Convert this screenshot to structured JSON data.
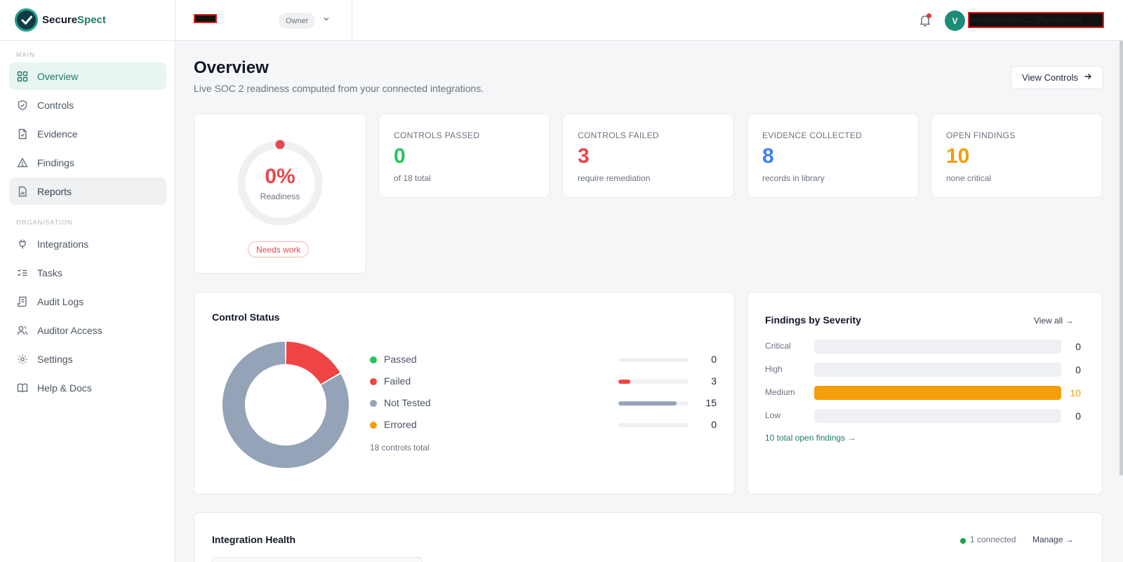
{
  "brand": {
    "name_part1": "Secure",
    "name_part2": "Spect"
  },
  "sidebar": {
    "section_main": "MAIN",
    "section_org": "ORGANISATION",
    "items": [
      {
        "label": "Overview",
        "icon": "grid-icon"
      },
      {
        "label": "Controls",
        "icon": "shield-icon"
      },
      {
        "label": "Evidence",
        "icon": "file-icon"
      },
      {
        "label": "Findings",
        "icon": "warning-icon"
      },
      {
        "label": "Reports",
        "icon": "report-icon"
      },
      {
        "label": "Integrations",
        "icon": "plug-icon"
      },
      {
        "label": "Tasks",
        "icon": "checklist-icon"
      },
      {
        "label": "Audit Logs",
        "icon": "scroll-icon"
      },
      {
        "label": "Auditor Access",
        "icon": "users-icon"
      },
      {
        "label": "Settings",
        "icon": "gear-icon"
      },
      {
        "label": "Help & Docs",
        "icon": "book-icon"
      }
    ]
  },
  "topbar": {
    "org_name": "████",
    "role": "Owner",
    "avatar_initial": "V",
    "user_email": "venkateshakm22@gmail.com"
  },
  "header": {
    "title": "Overview",
    "subtitle": "Live SOC 2 readiness computed from your connected integrations.",
    "view_controls_label": "View Controls"
  },
  "readiness": {
    "percent_text": "0%",
    "percent_value": 0,
    "label": "Readiness",
    "badge": "Needs work"
  },
  "stats": [
    {
      "label": "CONTROLS PASSED",
      "value": "0",
      "sub": "of 18 total",
      "color": "#22c55e"
    },
    {
      "label": "CONTROLS FAILED",
      "value": "3",
      "sub": "require remediation",
      "color": "#ef4444"
    },
    {
      "label": "EVIDENCE COLLECTED",
      "value": "8",
      "sub": "records in library",
      "color": "#3b82f6"
    },
    {
      "label": "OPEN FINDINGS",
      "value": "10",
      "sub": "none critical",
      "color": "#f59e0b"
    }
  ],
  "control_status": {
    "title": "Control Status",
    "total_label": "18 controls total",
    "items": [
      {
        "name": "Passed",
        "count": "0",
        "color": "#22c55e"
      },
      {
        "name": "Failed",
        "count": "3",
        "color": "#ef4444"
      },
      {
        "name": "Not Tested",
        "count": "15",
        "color": "#94a3b8"
      },
      {
        "name": "Errored",
        "count": "0",
        "color": "#f59e0b"
      }
    ]
  },
  "chart_data": {
    "type": "pie",
    "categories": [
      "Passed",
      "Failed",
      "Not Tested",
      "Errored"
    ],
    "values": [
      0,
      3,
      15,
      0
    ],
    "colors": [
      "#22c55e",
      "#ef4444",
      "#94a3b8",
      "#f59e0b"
    ],
    "title": "Control Status"
  },
  "findings": {
    "title": "Findings by Severity",
    "view_all": "View all →",
    "total_link": "10 total open findings →",
    "max": 10,
    "items": [
      {
        "name": "Critical",
        "count": "0",
        "value": 0
      },
      {
        "name": "High",
        "count": "0",
        "value": 0
      },
      {
        "name": "Medium",
        "count": "10",
        "value": 10
      },
      {
        "name": "Low",
        "count": "0",
        "value": 0
      }
    ]
  },
  "integration_health": {
    "title": "Integration Health",
    "connected": "1 connected",
    "manage": "Manage →"
  }
}
